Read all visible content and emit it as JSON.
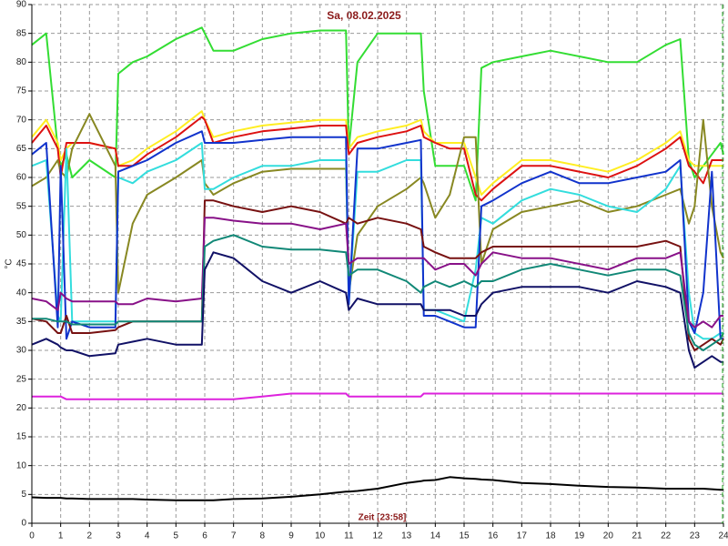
{
  "chart_data": {
    "type": "line",
    "title": "Sa, 08.02.2025",
    "x_label": "Zeit [23:58]",
    "y_label": "°C",
    "xlim": [
      0,
      24
    ],
    "xticks": [
      0,
      1,
      2,
      3,
      4,
      5,
      6,
      7,
      8,
      9,
      10,
      11,
      12,
      13,
      14,
      15,
      16,
      17,
      18,
      19,
      20,
      21,
      22,
      23,
      24
    ],
    "ylim": [
      0,
      90
    ],
    "yticks": [
      0,
      5,
      10,
      15,
      20,
      25,
      30,
      35,
      40,
      45,
      50,
      55,
      60,
      65,
      70,
      75,
      80,
      85,
      90
    ],
    "grid": true,
    "x": [
      0,
      0.5,
      0.9,
      1.0,
      1.2,
      1.4,
      2,
      2.9,
      3.0,
      3.5,
      4,
      5,
      5.9,
      6.0,
      6.3,
      7,
      8,
      9,
      10,
      10.9,
      11.0,
      11.3,
      12,
      13,
      13.5,
      13.6,
      14,
      14.5,
      15,
      15.4,
      15.6,
      16,
      17,
      18,
      19,
      20,
      21,
      22,
      22.5,
      22.8,
      23,
      23.3,
      23.6,
      23.9,
      24
    ],
    "series": [
      {
        "color": "#33dd33",
        "values": [
          83,
          85,
          65,
          62,
          64,
          60,
          63,
          60,
          78,
          80,
          81,
          84,
          86,
          85,
          82,
          82,
          84,
          85,
          85.5,
          85.5,
          65,
          80,
          85,
          85,
          85,
          75,
          62,
          62,
          62,
          56,
          79,
          80,
          81,
          82,
          81,
          80,
          80,
          83,
          84,
          63,
          60,
          62,
          64,
          66,
          64
        ]
      },
      {
        "color": "#ffee22",
        "values": [
          67,
          70,
          66,
          63,
          65,
          66,
          66,
          65,
          62,
          63,
          65,
          68,
          71.5,
          70,
          67,
          68,
          69,
          69.5,
          70,
          70,
          65,
          67,
          68,
          69,
          70,
          68,
          66,
          66,
          66,
          60,
          57,
          59,
          63,
          63,
          62,
          61,
          63,
          66,
          68,
          63,
          62,
          62,
          62,
          62,
          62
        ]
      },
      {
        "color": "#dd1111",
        "values": [
          66,
          69,
          65,
          60,
          66,
          66,
          66,
          65,
          62,
          62,
          64,
          67,
          70.5,
          70,
          66,
          67,
          68,
          68.5,
          69,
          69,
          64,
          66,
          67,
          68,
          69,
          67,
          66,
          65,
          65,
          57,
          56,
          58,
          62,
          62,
          61,
          60,
          62,
          65,
          67,
          62,
          61,
          59,
          63,
          63,
          63
        ]
      },
      {
        "color": "#888822",
        "values": [
          58.5,
          60,
          63,
          61,
          60,
          65,
          71,
          62,
          40,
          52,
          57,
          60,
          63,
          59,
          57,
          59,
          61,
          61.5,
          61.5,
          61.5,
          40,
          50,
          55,
          58,
          60,
          59,
          53,
          57,
          67,
          67,
          45,
          51,
          54,
          55,
          56,
          54,
          55,
          57,
          58,
          52,
          55,
          70,
          55,
          47,
          46
        ]
      },
      {
        "color": "#33dddd",
        "values": [
          62,
          63,
          36,
          35,
          65,
          35,
          35,
          35,
          60,
          59,
          61,
          63,
          66,
          58,
          58,
          60,
          62,
          62,
          63,
          63,
          38,
          61,
          61,
          63,
          63,
          37,
          37,
          36,
          35,
          44,
          53,
          52,
          56,
          58,
          57,
          55,
          54,
          58,
          62,
          40,
          33,
          32,
          32,
          33,
          33
        ]
      },
      {
        "color": "#1133cc",
        "values": [
          64,
          66,
          34,
          62,
          32,
          35,
          34,
          34,
          61,
          62,
          63,
          66,
          68,
          66,
          66,
          66,
          66.5,
          67,
          67,
          67,
          38,
          65,
          65,
          66,
          66.5,
          36,
          36,
          35,
          34,
          34,
          55,
          56,
          59,
          61,
          59,
          59,
          60,
          61,
          63,
          35,
          33,
          40,
          61,
          32,
          32
        ]
      },
      {
        "color": "#771111",
        "values": [
          35.5,
          35,
          33,
          33,
          36,
          33,
          33,
          33.5,
          34,
          35,
          35,
          35,
          35,
          56,
          56,
          55,
          54,
          55,
          54,
          52,
          53,
          52,
          53,
          52,
          51,
          48,
          47,
          46,
          46,
          46,
          47,
          48,
          48,
          48,
          48,
          48,
          48,
          49,
          48,
          32,
          30,
          31,
          32,
          31,
          32
        ]
      },
      {
        "color": "#881188",
        "values": [
          39,
          38.5,
          37,
          40,
          39,
          38.5,
          38.5,
          38.5,
          38,
          38,
          39,
          38.5,
          39,
          53,
          53,
          52.5,
          52,
          52,
          51,
          52,
          45,
          46,
          46,
          46,
          46,
          46,
          44,
          45,
          45,
          43,
          45,
          47,
          46,
          46,
          45,
          44,
          46,
          46,
          47,
          35,
          34,
          35,
          34,
          36,
          36
        ]
      },
      {
        "color": "#118877",
        "values": [
          35.5,
          35.5,
          35,
          35,
          35,
          34.5,
          34.5,
          34.5,
          35,
          35,
          35,
          35,
          35,
          48,
          49,
          50,
          48,
          47.5,
          47.5,
          47,
          43,
          44,
          44,
          42,
          40,
          41,
          42,
          41,
          42,
          41,
          42,
          42,
          44,
          45,
          44,
          43,
          44,
          44,
          43,
          33,
          31,
          30,
          31,
          32,
          33
        ]
      },
      {
        "color": "#111166",
        "values": [
          31,
          32,
          31,
          30.5,
          30,
          30,
          29,
          29.5,
          31,
          31.5,
          32,
          31,
          31,
          44,
          47,
          46,
          42,
          40,
          42,
          40,
          37,
          39,
          38,
          38,
          38,
          37,
          37,
          37,
          36,
          36,
          38,
          40,
          41,
          41,
          41,
          40,
          42,
          41,
          40,
          30,
          27,
          28,
          29,
          28,
          28
        ]
      },
      {
        "color": "#dd22dd",
        "values": [
          22,
          22,
          22,
          22,
          21.5,
          21.5,
          21.5,
          21.5,
          21.5,
          21.5,
          21.5,
          21.5,
          21.5,
          21.5,
          21.5,
          21.5,
          22,
          22.5,
          22.5,
          22.5,
          22,
          22,
          22,
          22,
          22,
          22.5,
          22.5,
          22.5,
          22.5,
          22.5,
          22.5,
          22.5,
          22.5,
          22.5,
          22.5,
          22.5,
          22.5,
          22.5,
          22.5,
          22.5,
          22.5,
          22.5,
          22.5,
          22.5,
          22.5
        ]
      },
      {
        "color": "#000000",
        "values": [
          4.5,
          4.4,
          4.4,
          4.4,
          4.3,
          4.3,
          4.2,
          4.2,
          4.2,
          4.2,
          4.1,
          4.0,
          4.0,
          4.0,
          4.0,
          4.2,
          4.3,
          4.6,
          5,
          5.5,
          5.5,
          5.6,
          6,
          7,
          7.3,
          7.4,
          7.5,
          8,
          7.8,
          7.7,
          7.6,
          7.5,
          7,
          6.8,
          6.5,
          6.3,
          6.2,
          6,
          6,
          6,
          6,
          6,
          5.9,
          5.8,
          5.8
        ]
      }
    ]
  }
}
